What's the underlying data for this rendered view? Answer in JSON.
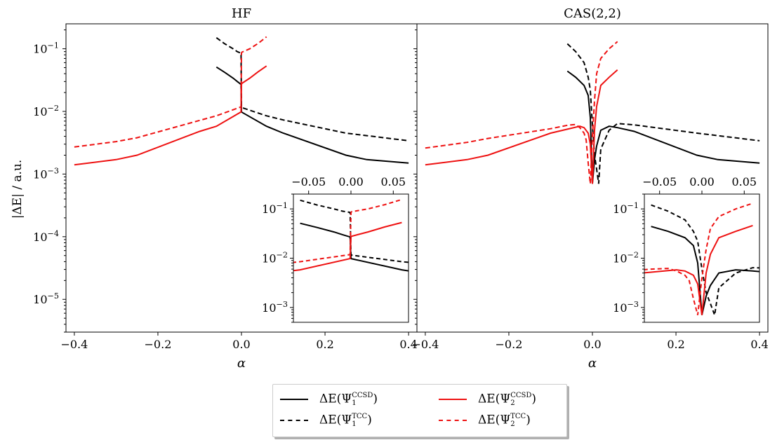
{
  "chart_data": [
    {
      "type": "line",
      "title": "HF",
      "xlabel": "α",
      "ylabel": "|ΔE| / a.u.",
      "yscale": "log",
      "xlim": [
        -0.42,
        0.42
      ],
      "ylim": [
        3e-06,
        0.25
      ],
      "xticks": [
        "−0.4",
        "−0.2",
        "0.0",
        "0.2",
        "0.4"
      ],
      "yticks": [
        "10−1",
        "10−2",
        "10−3",
        "10−4",
        "10−5"
      ],
      "series": [
        {
          "name": "ΔE(Ψ1CCSD)",
          "color": "#000000",
          "dash": "solid",
          "x": [
            -0.06,
            -0.04,
            -0.02,
            -0.01,
            -0.001,
            0,
            0.001,
            0.06,
            0.1,
            0.25,
            0.3,
            0.4
          ],
          "y": [
            0.051,
            0.042,
            0.034,
            0.03,
            0.027,
            0.0098,
            0.0097,
            0.0058,
            0.0045,
            0.002,
            0.0017,
            0.0015
          ]
        },
        {
          "name": "ΔE(Ψ1TCC)",
          "color": "#000000",
          "dash": "dashed",
          "x": [
            -0.06,
            -0.04,
            -0.02,
            -0.01,
            -0.001,
            0,
            0.001,
            0.06,
            0.1,
            0.25,
            0.3,
            0.4
          ],
          "y": [
            0.15,
            0.12,
            0.1,
            0.09,
            0.085,
            0.012,
            0.0115,
            0.0085,
            0.0073,
            0.0045,
            0.0041,
            0.0034
          ]
        },
        {
          "name": "ΔE(Ψ2CCSD)",
          "color": "#ee1111",
          "dash": "solid",
          "x": [
            -0.4,
            -0.3,
            -0.25,
            -0.1,
            -0.06,
            -0.001,
            0,
            0.001,
            0.02,
            0.04,
            0.06
          ],
          "y": [
            0.0014,
            0.0017,
            0.002,
            0.0048,
            0.0058,
            0.0098,
            0.027,
            0.028,
            0.034,
            0.043,
            0.053
          ]
        },
        {
          "name": "ΔE(Ψ2TCC)",
          "color": "#ee1111",
          "dash": "dashed",
          "x": [
            -0.4,
            -0.3,
            -0.25,
            -0.1,
            -0.06,
            -0.001,
            0,
            0.001,
            0.02,
            0.04,
            0.06
          ],
          "y": [
            0.0027,
            0.0033,
            0.0038,
            0.0072,
            0.0085,
            0.0118,
            0.085,
            0.088,
            0.1,
            0.122,
            0.155
          ]
        }
      ],
      "inset": {
        "xlim": [
          -0.068,
          0.068
        ],
        "ylim": [
          0.0005,
          0.2
        ],
        "xticks": [
          "−0.05",
          "0.00",
          "0.05"
        ],
        "yticks": [
          "10−1",
          "10−2",
          "10−3"
        ]
      }
    },
    {
      "type": "line",
      "title": "CAS(2,2)",
      "xlabel": "α",
      "yscale": "log",
      "xlim": [
        -0.42,
        0.42
      ],
      "ylim": [
        3e-06,
        0.25
      ],
      "xticks": [
        "−0.4",
        "−0.2",
        "0.0",
        "0.2",
        "0.4"
      ],
      "series": [
        {
          "name": "ΔE(Ψ1CCSD)",
          "color": "#000000",
          "dash": "solid",
          "x": [
            -0.06,
            -0.04,
            -0.02,
            -0.01,
            -0.005,
            0,
            0.005,
            0.01,
            0.02,
            0.04,
            0.06,
            0.1,
            0.25,
            0.3,
            0.4
          ],
          "y": [
            0.044,
            0.035,
            0.026,
            0.018,
            0.008,
            0.0007,
            0.0017,
            0.0028,
            0.005,
            0.0058,
            0.0055,
            0.0048,
            0.002,
            0.0017,
            0.0015
          ]
        },
        {
          "name": "ΔE(Ψ1TCC)",
          "color": "#000000",
          "dash": "dashed",
          "x": [
            -0.06,
            -0.04,
            -0.02,
            -0.01,
            -0.005,
            0,
            0.005,
            0.01,
            0.015,
            0.02,
            0.04,
            0.06,
            0.1,
            0.25,
            0.3,
            0.4
          ],
          "y": [
            0.12,
            0.09,
            0.06,
            0.035,
            0.022,
            0.006,
            0.002,
            0.0012,
            0.0007,
            0.0025,
            0.005,
            0.0064,
            0.0061,
            0.0045,
            0.0041,
            0.0034
          ]
        },
        {
          "name": "ΔE(Ψ2CCSD)",
          "color": "#ee1111",
          "dash": "solid",
          "x": [
            -0.4,
            -0.3,
            -0.25,
            -0.1,
            -0.06,
            -0.03,
            -0.02,
            -0.01,
            -0.005,
            0,
            0.005,
            0.01,
            0.02,
            0.04,
            0.06
          ],
          "y": [
            0.0014,
            0.0017,
            0.002,
            0.0045,
            0.0052,
            0.0058,
            0.0055,
            0.0045,
            0.003,
            0.0007,
            0.005,
            0.012,
            0.026,
            0.035,
            0.046
          ]
        },
        {
          "name": "ΔE(Ψ2TCC)",
          "color": "#ee1111",
          "dash": "dashed",
          "x": [
            -0.4,
            -0.3,
            -0.25,
            -0.1,
            -0.06,
            -0.04,
            -0.03,
            -0.02,
            -0.015,
            -0.01,
            -0.005,
            0,
            0.005,
            0.01,
            0.02,
            0.04,
            0.06
          ],
          "y": [
            0.0026,
            0.0032,
            0.0037,
            0.0053,
            0.006,
            0.0062,
            0.0055,
            0.0045,
            0.0035,
            0.0015,
            0.0007,
            0.004,
            0.015,
            0.04,
            0.07,
            0.1,
            0.13
          ]
        }
      ],
      "inset": {
        "xlim": [
          -0.068,
          0.068
        ],
        "ylim": [
          0.0005,
          0.2
        ],
        "xticks": [
          "−0.05",
          "0.00",
          "0.05"
        ],
        "yticks": [
          "10−1",
          "10−2",
          "10−3"
        ]
      }
    }
  ],
  "legend": {
    "items": [
      {
        "base": "ΔE(Ψ",
        "sub": "1",
        "sup": "CCSD",
        "color": "#000000",
        "dash": "solid"
      },
      {
        "base": "ΔE(Ψ",
        "sub": "2",
        "sup": "CCSD",
        "color": "#ee1111",
        "dash": "solid"
      },
      {
        "base": "ΔE(Ψ",
        "sub": "1",
        "sup": "TCC",
        "color": "#000000",
        "dash": "dashed"
      },
      {
        "base": "ΔE(Ψ",
        "sub": "2",
        "sup": "TCC",
        "color": "#ee1111",
        "dash": "dashed"
      }
    ],
    "close": ")"
  }
}
